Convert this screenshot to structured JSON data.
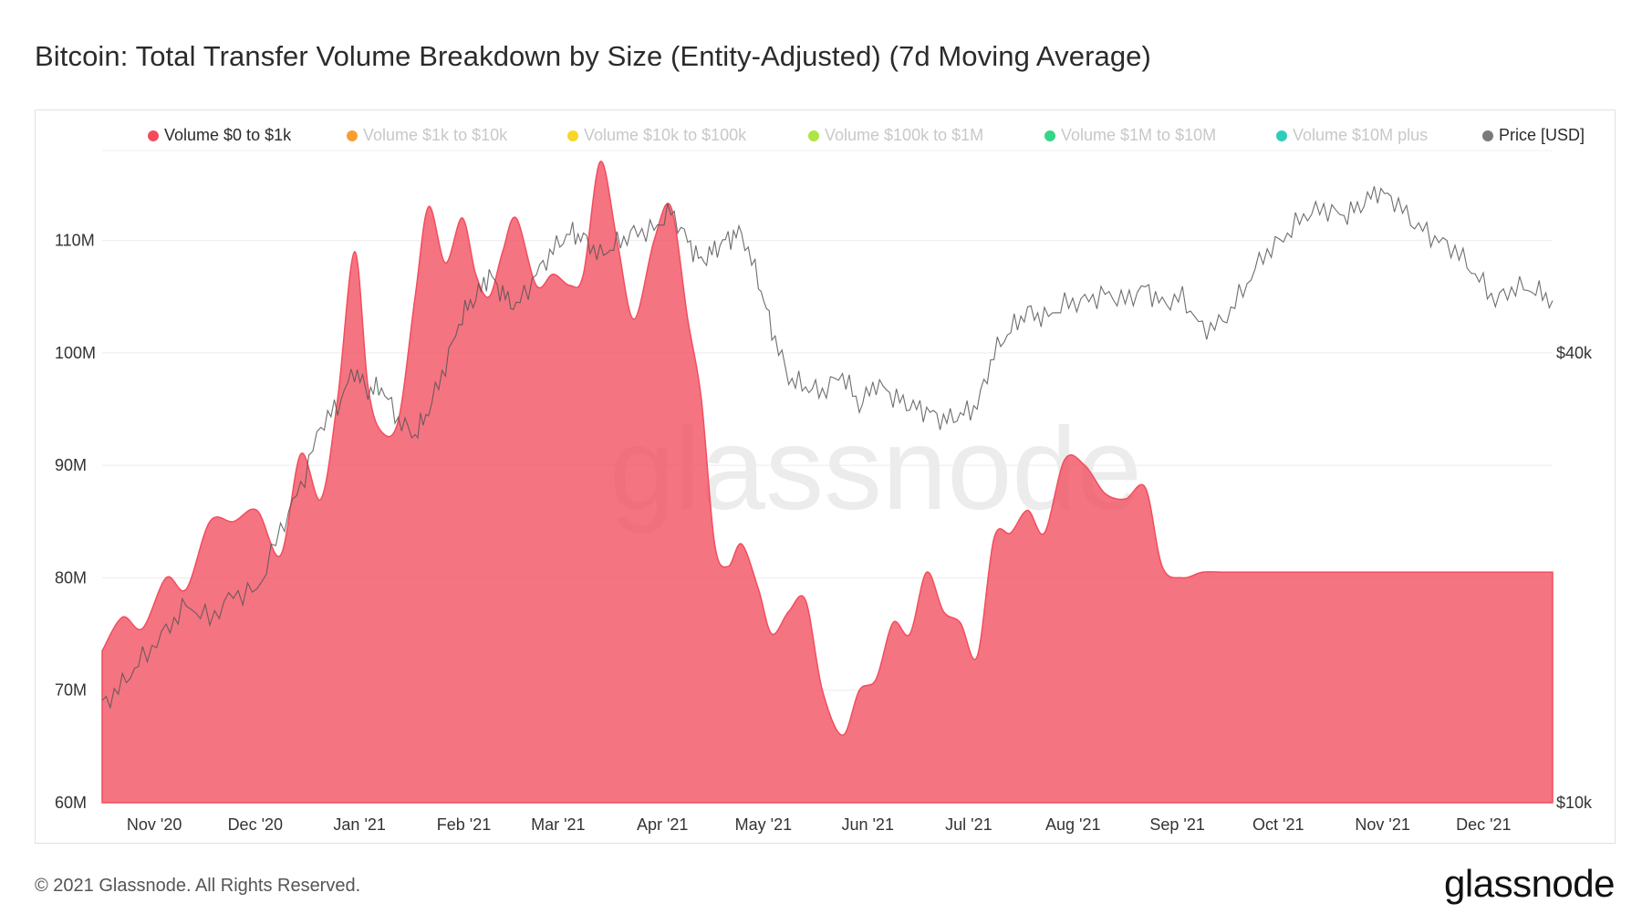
{
  "title": "Bitcoin: Total Transfer Volume Breakdown by Size (Entity-Adjusted) (7d Moving Average)",
  "footer": "© 2021 Glassnode. All Rights Reserved.",
  "brand": "glassnode",
  "watermark": "glassnode",
  "legend": [
    {
      "label": "Volume $0 to $1k",
      "color": "#f24d5e",
      "active": true
    },
    {
      "label": "Volume $1k to $10k",
      "color": "#f7931a",
      "active": false
    },
    {
      "label": "Volume $10k to $100k",
      "color": "#f6d10f",
      "active": false
    },
    {
      "label": "Volume $100k to $1M",
      "color": "#a6e22e",
      "active": false
    },
    {
      "label": "Volume $1M to $10M",
      "color": "#1ed27a",
      "active": false
    },
    {
      "label": "Volume $10M plus",
      "color": "#18c7b5",
      "active": false
    },
    {
      "label": "Price [USD]",
      "color": "#7a7a7a",
      "active": true
    }
  ],
  "chart_data": {
    "type": "area",
    "title": "Bitcoin: Total Transfer Volume Breakdown by Size (Entity-Adjusted) (7d Moving Average)",
    "x": [
      "2020-10-26",
      "2020-11-01",
      "2020-11-07",
      "2020-11-14",
      "2020-11-20",
      "2020-11-27",
      "2020-12-04",
      "2020-12-11",
      "2020-12-18",
      "2020-12-24",
      "2020-12-30",
      "2021-01-04",
      "2021-01-09",
      "2021-01-13",
      "2021-01-17",
      "2021-01-22",
      "2021-01-27",
      "2021-01-31",
      "2021-02-05",
      "2021-02-10",
      "2021-02-14",
      "2021-02-18",
      "2021-02-22",
      "2021-02-26",
      "2021-03-04",
      "2021-03-09",
      "2021-03-14",
      "2021-03-18",
      "2021-03-23",
      "2021-03-28",
      "2021-04-02",
      "2021-04-08",
      "2021-04-13",
      "2021-04-18",
      "2021-04-22",
      "2021-04-26",
      "2021-04-30",
      "2021-05-04",
      "2021-05-09",
      "2021-05-13",
      "2021-05-18",
      "2021-05-23",
      "2021-05-28",
      "2021-06-03",
      "2021-06-08",
      "2021-06-13",
      "2021-06-18",
      "2021-06-23",
      "2021-06-28",
      "2021-07-03",
      "2021-07-08",
      "2021-07-13",
      "2021-07-18",
      "2021-07-23",
      "2021-07-28",
      "2021-08-02",
      "2021-08-08",
      "2021-08-14",
      "2021-08-20",
      "2021-08-26",
      "2021-09-01",
      "2021-09-06",
      "2021-09-12",
      "2021-09-18",
      "2021-09-24",
      "2021-09-30",
      "2021-10-06",
      "2021-10-12",
      "2021-10-18",
      "2021-10-24",
      "2021-10-30",
      "2021-11-04",
      "2021-11-09",
      "2021-11-14",
      "2021-11-20",
      "2021-11-26",
      "2021-12-02",
      "2021-12-08",
      "2021-12-14",
      "2021-12-20",
      "2021-12-26",
      "2021-12-31"
    ],
    "series": [
      {
        "name": "Volume $0 to $1k",
        "axis": "left",
        "color": "#f24d5e",
        "values": [
          73.5,
          76.5,
          75.5,
          80,
          79,
          85,
          85,
          86,
          82,
          91,
          87,
          96,
          109,
          97,
          93,
          94,
          105,
          113,
          108,
          112,
          107,
          105,
          109,
          112,
          106,
          107,
          106,
          107,
          117,
          110,
          103,
          110,
          113,
          103,
          96,
          83,
          81,
          83,
          79,
          75,
          77,
          78,
          70,
          66,
          70,
          71,
          76,
          75,
          80.5,
          77,
          76,
          73,
          83.5,
          84,
          86,
          84,
          90.5,
          90,
          87.5,
          87,
          88,
          81,
          80,
          80.5,
          80.5,
          80.5,
          80.5,
          80.5,
          80.5,
          80.5,
          80.5,
          80.5,
          80.5,
          80.5,
          80.5,
          80.5,
          80.5,
          80.5,
          80.5,
          80.5,
          80.5,
          80.5
        ]
      },
      {
        "name": "Price [USD]",
        "axis": "right",
        "values": [
          13500,
          14400,
          15600,
          17000,
          18400,
          17600,
          19000,
          19200,
          23200,
          26500,
          32000,
          34000,
          38000,
          35500,
          36000,
          32500,
          31000,
          33500,
          38500,
          45000,
          47500,
          51000,
          48000,
          46000,
          51000,
          55000,
          58000,
          57000,
          54000,
          56000,
          58000,
          58500,
          62000,
          56500,
          53000,
          55000,
          57000,
          58000,
          50000,
          43000,
          37000,
          36000,
          35500,
          37500,
          34000,
          36500,
          35000,
          34000,
          33500,
          32500,
          33000,
          34000,
          40000,
          43000,
          45500,
          44500,
          46500,
          47000,
          48000,
          47000,
          49000,
          46500,
          47500,
          43000,
          44000,
          48500,
          54000,
          57000,
          61000,
          62500,
          61000,
          63000,
          66000,
          64000,
          59500,
          57000,
          55000,
          51000,
          47000,
          49000,
          48500,
          47000
        ]
      }
    ],
    "y_left": {
      "ticks": [
        "60M",
        "70M",
        "80M",
        "90M",
        "100M",
        "110M"
      ],
      "range": [
        60,
        118
      ]
    },
    "y_right": {
      "ticks": [
        "$10k",
        "$40k"
      ],
      "scale": "log"
    },
    "x_ticks": [
      "Nov '20",
      "Dec '20",
      "Jan '21",
      "Feb '21",
      "Mar '21",
      "Apr '21",
      "May '21",
      "Jun '21",
      "Jul '21",
      "Aug '21",
      "Sep '21",
      "Oct '21",
      "Nov '21",
      "Dec '21"
    ],
    "grid": true,
    "legend_position": "top"
  }
}
